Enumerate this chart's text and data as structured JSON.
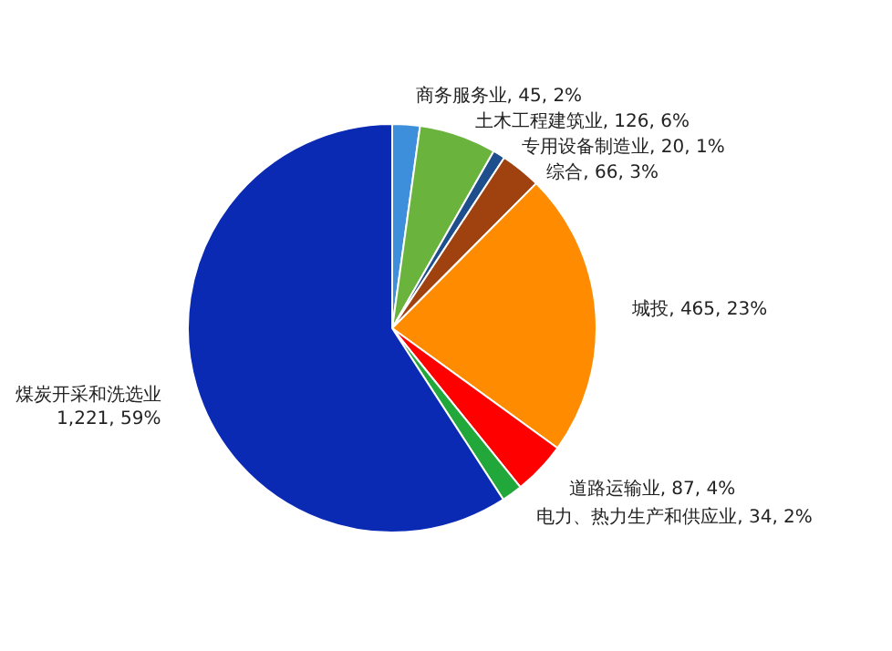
{
  "chart_data": {
    "type": "pie",
    "categories": [
      "商务服务业",
      "土木工程建筑业",
      "专用设备制造业",
      "综合",
      "城投",
      "道路运输业",
      "电力、热力生产和供应业",
      "煤炭开采和洗选业"
    ],
    "values": [
      45,
      126,
      20,
      66,
      465,
      87,
      34,
      1221
    ],
    "colors": [
      "#3d8fdc",
      "#6ab43e",
      "#1f4e8c",
      "#a0420f",
      "#ff8c00",
      "#ff0000",
      "#22a83a",
      "#0a2ab4"
    ],
    "value_labels": [
      "45, 2%",
      "126, 6%",
      "20, 1%",
      "66, 3%",
      "465, 23%",
      "87, 4%",
      "34, 2%",
      "1,221, 59%"
    ]
  }
}
